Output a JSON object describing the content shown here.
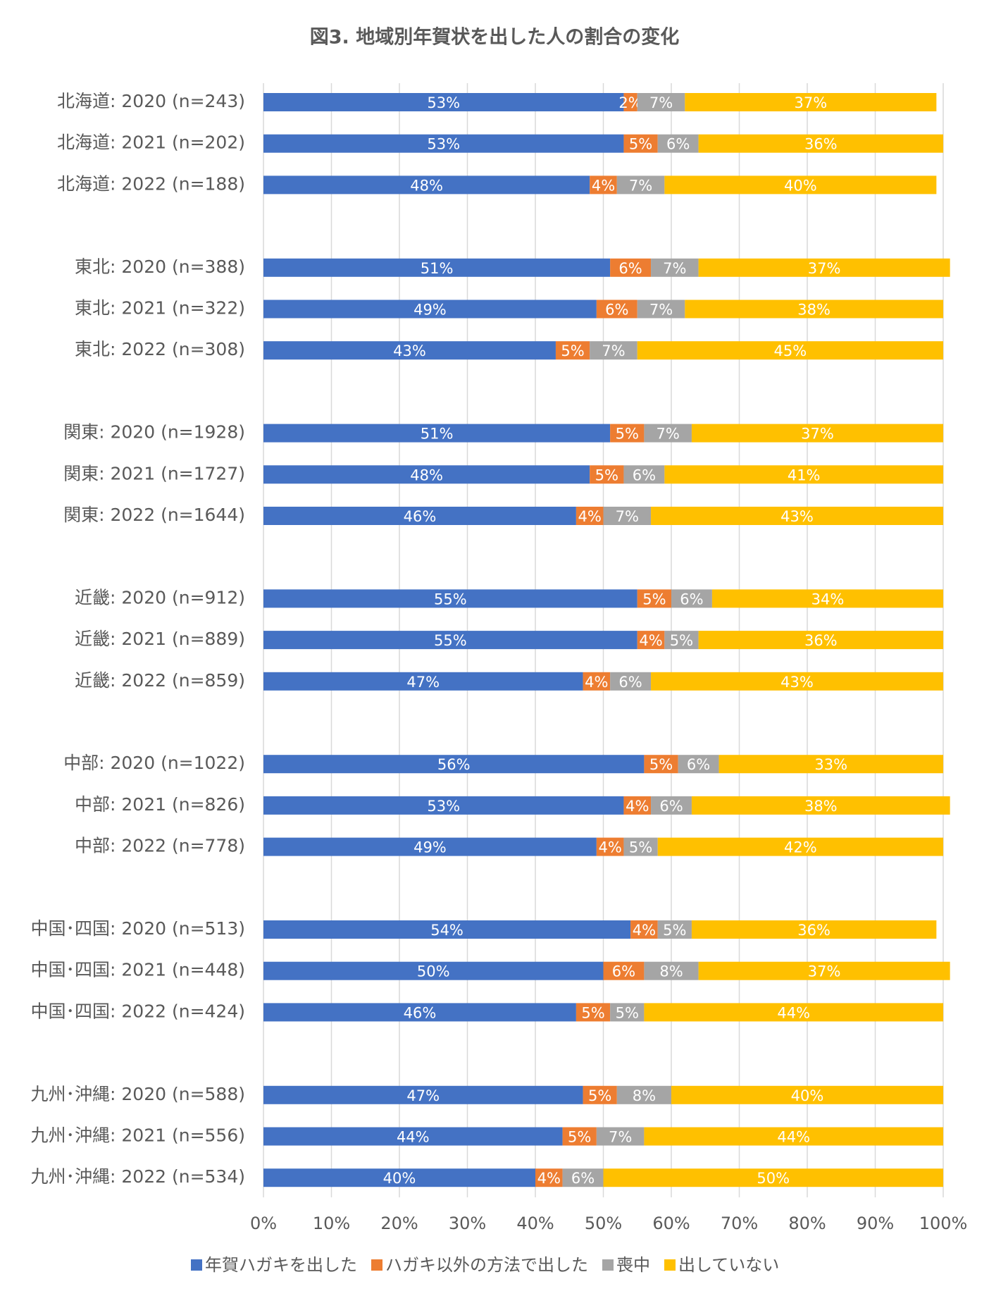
{
  "chart_data": {
    "type": "stacked-bar-horizontal",
    "title": "図3. 地域別年賀状を出した人の割合の変化",
    "categories": [
      "北海道: 2020 (n=243)",
      "北海道: 2021 (n=202)",
      "北海道: 2022 (n=188)",
      "東北: 2020 (n=388)",
      "東北: 2021 (n=322)",
      "東北: 2022 (n=308)",
      "関東: 2020 (n=1928)",
      "関東: 2021 (n=1727)",
      "関東: 2022 (n=1644)",
      "近畿: 2020 (n=912)",
      "近畿: 2021 (n=889)",
      "近畿: 2022 (n=859)",
      "中部: 2020 (n=1022)",
      "中部: 2021 (n=826)",
      "中部: 2022 (n=778)",
      "中国･四国: 2020 (n=513)",
      "中国･四国: 2021 (n=448)",
      "中国･四国: 2022 (n=424)",
      "九州･沖縄: 2020 (n=588)",
      "九州･沖縄: 2021 (n=556)",
      "九州･沖縄: 2022 (n=534)"
    ],
    "series": [
      {
        "name": "年賀ハガキを出した",
        "color": "#4472c4",
        "values": [
          53,
          53,
          48,
          51,
          49,
          43,
          51,
          48,
          46,
          55,
          55,
          47,
          56,
          53,
          49,
          54,
          50,
          46,
          47,
          44,
          40
        ],
        "value_labels": [
          "53%",
          "53%",
          "48%",
          "51%",
          "49%",
          "43%",
          "51%",
          "48%",
          "46%",
          "55%",
          "55%",
          "47%",
          "56%",
          "53%",
          "49%",
          "54%",
          "50%",
          "46%",
          "47%",
          "44%",
          "40%"
        ]
      },
      {
        "name": "ハガキ以外の方法で出した",
        "color": "#ed7d31",
        "values": [
          2,
          5,
          4,
          6,
          6,
          5,
          5,
          5,
          4,
          5,
          4,
          4,
          5,
          4,
          4,
          4,
          6,
          5,
          5,
          5,
          4
        ],
        "value_labels": [
          "2%",
          "5%",
          "4%",
          "6%",
          "6%",
          "5%",
          "5%",
          "5%",
          "4%",
          "5%",
          "4%",
          "4%",
          "5%",
          "4%",
          "4%",
          "4%",
          "6%",
          "5%",
          "5%",
          "5%",
          "4%"
        ]
      },
      {
        "name": "喪中",
        "color": "#a5a5a5",
        "values": [
          7,
          6,
          7,
          7,
          7,
          7,
          7,
          6,
          7,
          6,
          5,
          6,
          6,
          6,
          5,
          5,
          8,
          5,
          8,
          7,
          6
        ],
        "value_labels": [
          "7%",
          "6%",
          "7%",
          "7%",
          "7%",
          "7%",
          "7%",
          "6%",
          "7%",
          "6%",
          "5%",
          "6%",
          "6%",
          "6%",
          "5%",
          "5%",
          "8%",
          "5%",
          "8%",
          "7%",
          "6%"
        ]
      },
      {
        "name": "出していない",
        "color": "#ffc000",
        "values": [
          37,
          36,
          40,
          37,
          38,
          45,
          37,
          41,
          43,
          34,
          36,
          43,
          33,
          38,
          42,
          36,
          37,
          44,
          40,
          44,
          50
        ],
        "value_labels": [
          "37%",
          "36%",
          "40%",
          "37%",
          "38%",
          "45%",
          "37%",
          "41%",
          "43%",
          "34%",
          "36%",
          "43%",
          "33%",
          "38%",
          "42%",
          "36%",
          "37%",
          "44%",
          "40%",
          "44%",
          "50%"
        ]
      }
    ],
    "xlim": [
      0,
      100
    ],
    "xticks": [
      {
        "value": 0,
        "label": "0%"
      },
      {
        "value": 10,
        "label": "10%"
      },
      {
        "value": 20,
        "label": "20%"
      },
      {
        "value": 30,
        "label": "30%"
      },
      {
        "value": 40,
        "label": "40%"
      },
      {
        "value": 50,
        "label": "50%"
      },
      {
        "value": 60,
        "label": "60%"
      },
      {
        "value": 70,
        "label": "70%"
      },
      {
        "value": 80,
        "label": "80%"
      },
      {
        "value": 90,
        "label": "90%"
      },
      {
        "value": 100,
        "label": "100%"
      }
    ],
    "grid": true,
    "legend": "bottom"
  }
}
